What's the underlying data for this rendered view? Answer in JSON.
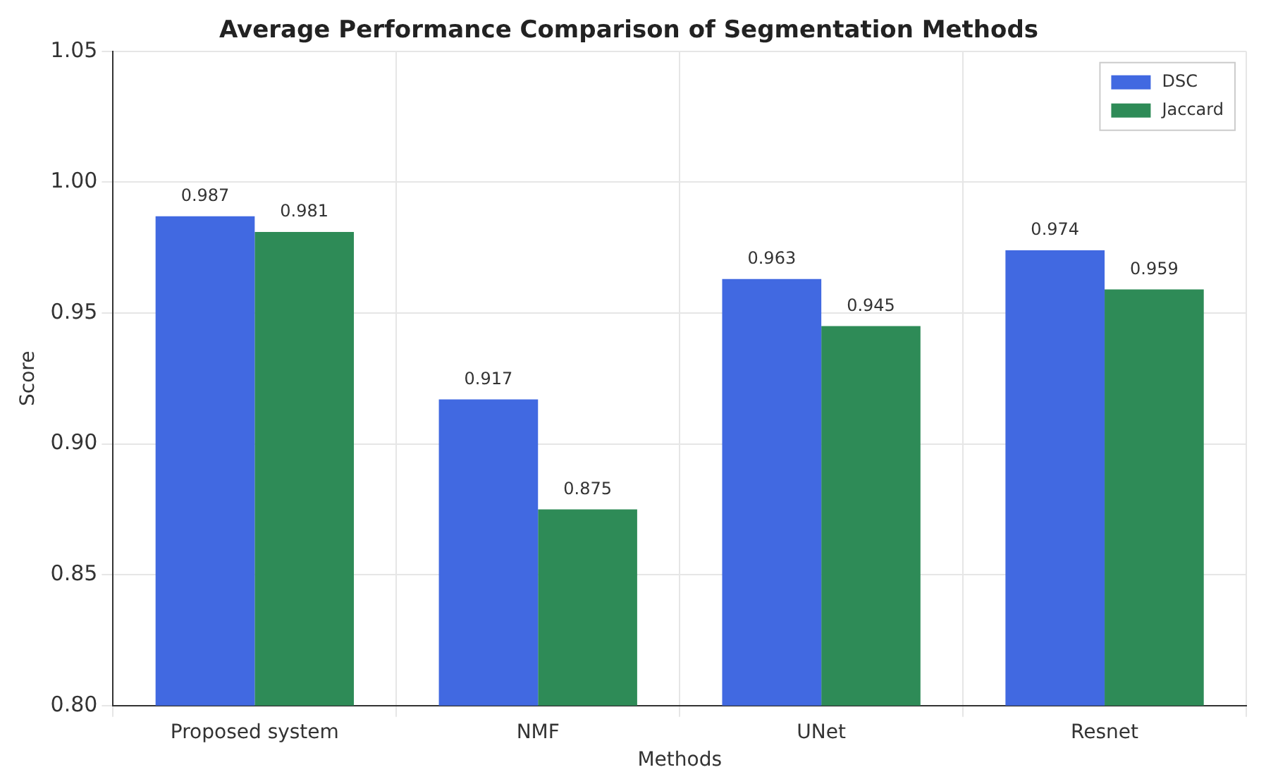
{
  "chart_data": {
    "type": "bar",
    "title": "Average Performance Comparison of Segmentation Methods",
    "xlabel": "Methods",
    "ylabel": "Score",
    "categories": [
      "Proposed system",
      "NMF",
      "UNet",
      "Resnet"
    ],
    "series": [
      {
        "name": "DSC",
        "color": "#4169e1",
        "values": [
          0.987,
          0.917,
          0.963,
          0.974
        ]
      },
      {
        "name": "Jaccard",
        "color": "#2e8b57",
        "values": [
          0.981,
          0.875,
          0.945,
          0.959
        ]
      }
    ],
    "ylim": [
      0.8,
      1.05
    ],
    "yticks": [
      {
        "value": 0.8,
        "label": "0.80"
      },
      {
        "value": 0.85,
        "label": "0.85"
      },
      {
        "value": 0.9,
        "label": "0.90"
      },
      {
        "value": 0.95,
        "label": "0.95"
      },
      {
        "value": 1.0,
        "label": "1.00"
      },
      {
        "value": 1.05,
        "label": "1.05"
      }
    ],
    "grid": true,
    "legend": "top right",
    "data_labels": true
  }
}
